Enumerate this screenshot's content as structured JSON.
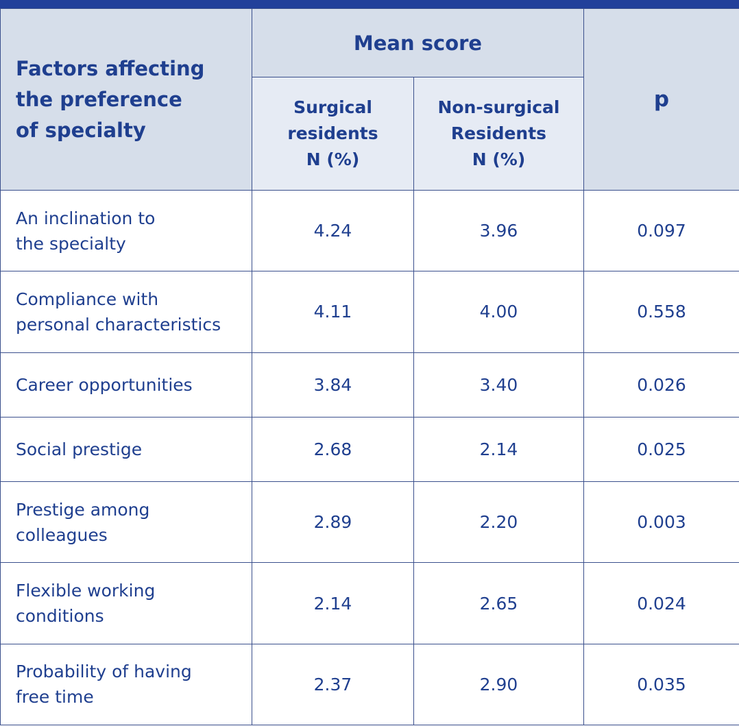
{
  "table": {
    "header": {
      "factor_label": "Factors affecting\nthe preference\nof specialty",
      "mean_score_label": "Mean score",
      "surgical_label": "Surgical\nresidents\nN (%)",
      "nonsurgical_label": "Non-surgical\nResidents\nN (%)",
      "p_label": "p"
    },
    "rows": [
      {
        "factor": "An inclination to\nthe specialty",
        "surgical": "4.24",
        "nonsurgical": "3.96",
        "p": "0.097"
      },
      {
        "factor": "Compliance with\npersonal characteristics",
        "surgical": "4.11",
        "nonsurgical": "4.00",
        "p": "0.558"
      },
      {
        "factor": "Career opportunities",
        "surgical": "3.84",
        "nonsurgical": "3.40",
        "p": "0.026"
      },
      {
        "factor": "Social prestige",
        "surgical": "2.68",
        "nonsurgical": "2.14",
        "p": "0.025"
      },
      {
        "factor": "Prestige among\ncolleagues",
        "surgical": "2.89",
        "nonsurgical": "2.20",
        "p": "0.003"
      },
      {
        "factor": "Flexible working\nconditions",
        "surgical": "2.14",
        "nonsurgical": "2.65",
        "p": "0.024"
      },
      {
        "factor": "Probability of having\nfree time",
        "surgical": "2.37",
        "nonsurgical": "2.90",
        "p": "0.035"
      }
    ]
  },
  "colors": {
    "accent_bar": "#22409a",
    "header_bg": "#d6deea",
    "subheader_bg": "#e6ebf4",
    "text": "#1f3f8f"
  }
}
